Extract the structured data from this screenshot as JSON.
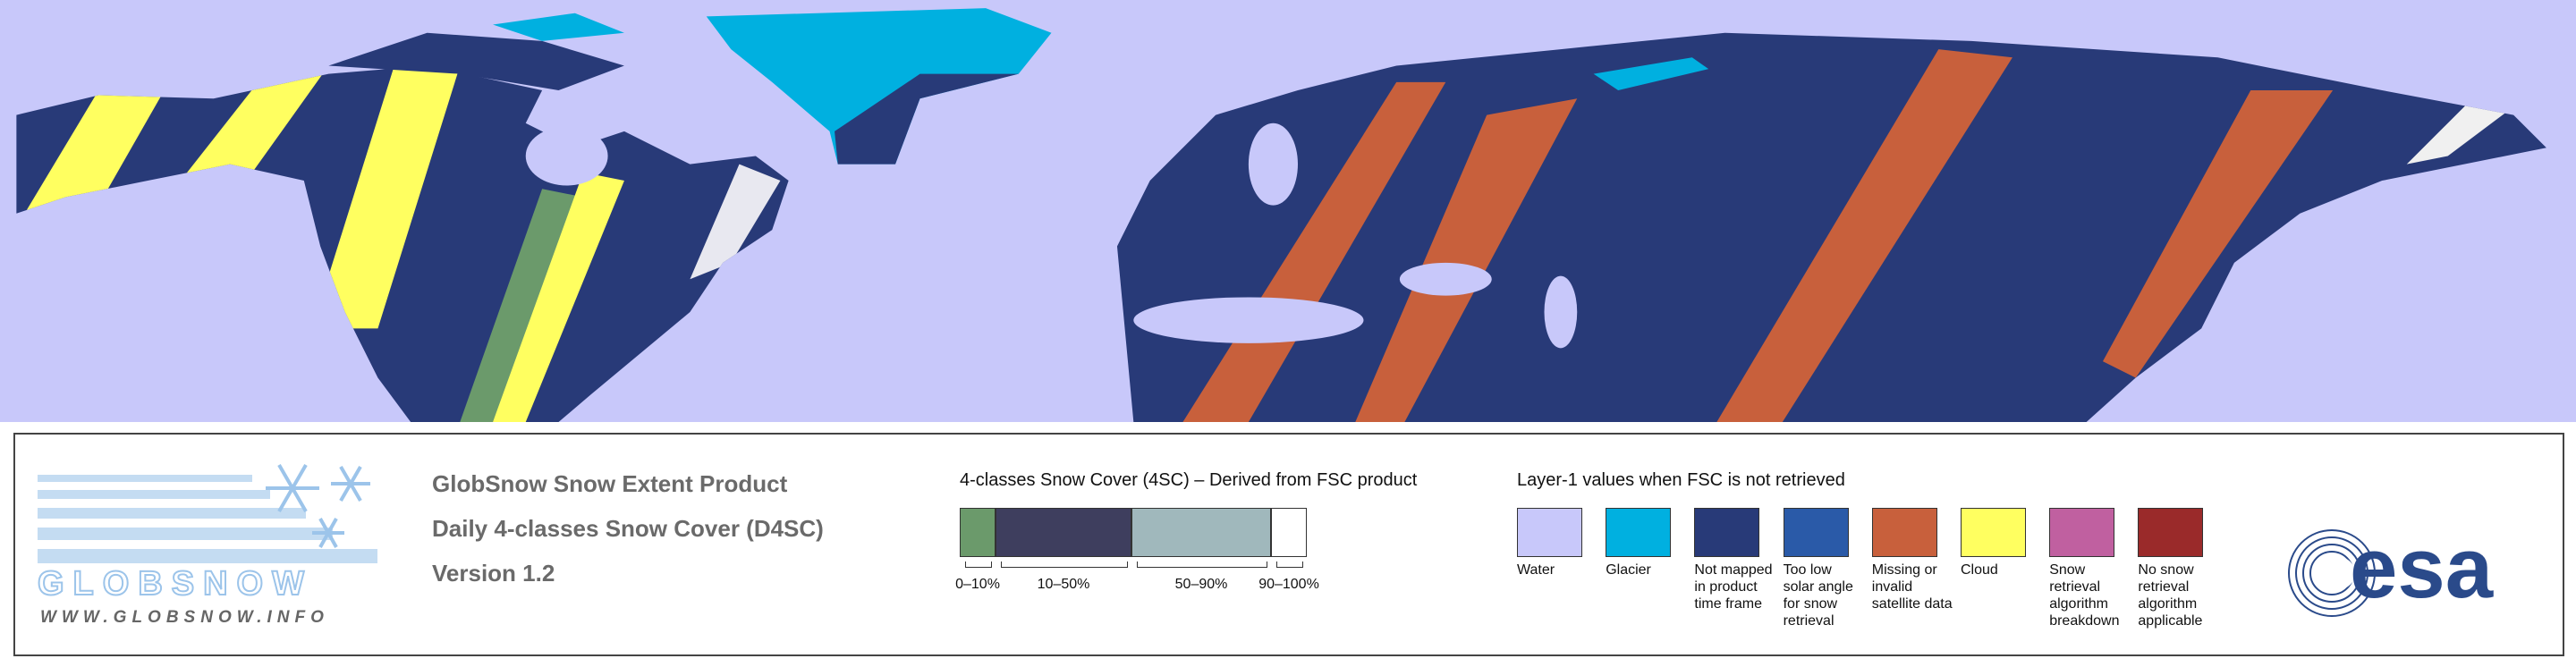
{
  "logo": {
    "name": "GLOBSNOW",
    "url": "WWW.GLOBSNOW.INFO"
  },
  "product": {
    "lines": [
      "GlobSnow Snow Extent Product",
      "Daily 4-classes Snow Cover (D4SC)",
      "Version 1.2"
    ]
  },
  "snow_cover_4sc": {
    "title": "4-classes Snow Cover (4SC) – Derived from FSC product",
    "classes": [
      {
        "label": "0–10%",
        "color": "#6b9a6b"
      },
      {
        "label": "10–50%",
        "color": "#3e3e5e"
      },
      {
        "label": "50–90%",
        "color": "#a0b8bc"
      },
      {
        "label": "90–100%",
        "color": "#ffffff"
      }
    ]
  },
  "layer1": {
    "title": "Layer-1 values when FSC is not retrieved",
    "items": [
      {
        "label": "Water",
        "color": "#c8c8fa"
      },
      {
        "label": "Glacier",
        "color": "#00b0e0"
      },
      {
        "label": "Not mapped in product time frame",
        "color": "#283a78"
      },
      {
        "label": "Too low solar angle for snow retrieval",
        "color": "#2a5aa8"
      },
      {
        "label": "Missing or invalid satellite data",
        "color": "#c8603c"
      },
      {
        "label": "Cloud",
        "color": "#ffff60"
      },
      {
        "label": "Snow retrieval algorithm breakdown",
        "color": "#c060a0"
      },
      {
        "label": "No snow retrieval algorithm applicable",
        "color": "#9a2a2a"
      }
    ]
  },
  "esa": {
    "name": "esa"
  }
}
